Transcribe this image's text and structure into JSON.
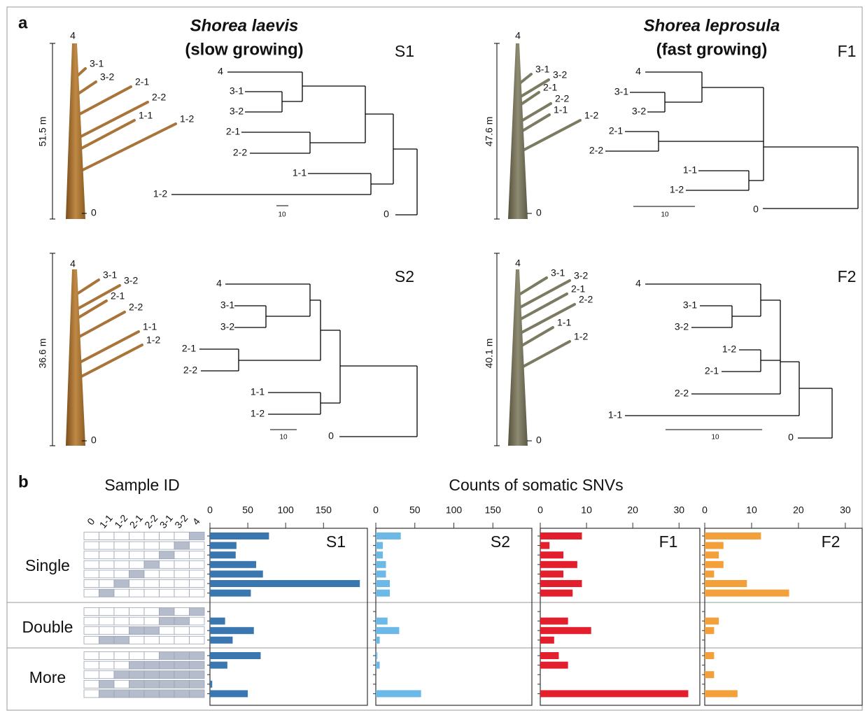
{
  "panel_a": {
    "label": "a",
    "species": [
      {
        "name": "Shorea laevis",
        "growth": "(slow growing)"
      },
      {
        "name": "Shorea leprosula",
        "growth": "(fast growing)"
      }
    ],
    "trees": [
      {
        "id": "S1",
        "height": "51.5 m",
        "tree_labels": [
          "4",
          "3-1",
          "3-2",
          "2-1",
          "2-2",
          "1-1",
          "1-2",
          "0"
        ],
        "dendrogram_labels": [
          "4",
          "3-1",
          "3-2",
          "2-1",
          "2-2",
          "1-1",
          "1-2",
          "0"
        ],
        "scale_label": "10"
      },
      {
        "id": "S2",
        "height": "36.6 m",
        "tree_labels": [
          "4",
          "3-1",
          "3-2",
          "2-1",
          "2-2",
          "1-1",
          "1-2",
          "0"
        ],
        "dendrogram_labels": [
          "4",
          "3-1",
          "3-2",
          "2-1",
          "2-2",
          "1-1",
          "1-2",
          "0"
        ],
        "scale_label": "10"
      },
      {
        "id": "F1",
        "height": "47.6 m",
        "tree_labels": [
          "4",
          "3-1",
          "3-2",
          "2-1",
          "2-2",
          "1-1",
          "1-2",
          "0"
        ],
        "dendrogram_labels": [
          "4",
          "3-1",
          "3-2",
          "2-1",
          "2-2",
          "1-1",
          "1-2",
          "0"
        ],
        "scale_label": "10"
      },
      {
        "id": "F2",
        "height": "40.1 m",
        "tree_labels": [
          "4",
          "3-1",
          "3-2",
          "2-1",
          "2-2",
          "1-1",
          "1-2",
          "0"
        ],
        "dendrogram_labels": [
          "4",
          "3-1",
          "3-2",
          "1-2",
          "2-1",
          "2-2",
          "1-1",
          "0"
        ],
        "scale_label": "10"
      }
    ]
  },
  "panel_b": {
    "label": "b",
    "sample_header": "Sample ID",
    "counts_header": "Counts of somatic SNVs",
    "samples": [
      "0",
      "1-1",
      "1-2",
      "2-1",
      "2-2",
      "3-1",
      "3-2",
      "4"
    ],
    "groups": [
      {
        "name": "Single",
        "matrix": [
          [
            0,
            0,
            0,
            0,
            0,
            0,
            0,
            1
          ],
          [
            0,
            0,
            0,
            0,
            0,
            0,
            1,
            0
          ],
          [
            0,
            0,
            0,
            0,
            0,
            1,
            0,
            0
          ],
          [
            0,
            0,
            0,
            0,
            1,
            0,
            0,
            0
          ],
          [
            0,
            0,
            0,
            1,
            0,
            0,
            0,
            0
          ],
          [
            0,
            0,
            1,
            0,
            0,
            0,
            0,
            0
          ],
          [
            0,
            1,
            0,
            0,
            0,
            0,
            0,
            0
          ]
        ]
      },
      {
        "name": "Double",
        "matrix": [
          [
            0,
            0,
            0,
            0,
            0,
            1,
            0,
            1
          ],
          [
            0,
            0,
            0,
            0,
            0,
            1,
            1,
            0
          ],
          [
            0,
            0,
            0,
            1,
            1,
            0,
            0,
            0
          ],
          [
            0,
            1,
            1,
            0,
            0,
            0,
            0,
            0
          ]
        ]
      },
      {
        "name": "More",
        "matrix": [
          [
            0,
            0,
            0,
            0,
            0,
            1,
            1,
            1
          ],
          [
            0,
            0,
            0,
            1,
            1,
            1,
            1,
            1
          ],
          [
            0,
            0,
            1,
            1,
            1,
            1,
            1,
            1
          ],
          [
            0,
            1,
            0,
            1,
            1,
            1,
            1,
            1
          ],
          [
            0,
            1,
            1,
            1,
            1,
            1,
            1,
            1
          ]
        ]
      }
    ]
  },
  "chart_data": [
    {
      "type": "bar",
      "orientation": "horizontal",
      "title": "S1",
      "color": "#3a77b0",
      "values": [
        78,
        35,
        34,
        61,
        70,
        198,
        54,
        0,
        20,
        58,
        30,
        67,
        23,
        0,
        3,
        50
      ],
      "xlim": [
        0,
        208
      ],
      "xticks": [
        0,
        50,
        100,
        150
      ]
    },
    {
      "type": "bar",
      "orientation": "horizontal",
      "title": "S2",
      "color": "#6cb9e8",
      "values": [
        32,
        9,
        9,
        13,
        13,
        18,
        18,
        0,
        15,
        30,
        5,
        2,
        5,
        0,
        0,
        58
      ],
      "xlim": [
        0,
        200
      ],
      "xticks": [
        0,
        50,
        100,
        150
      ]
    },
    {
      "type": "bar",
      "orientation": "horizontal",
      "title": "F1",
      "color": "#e31e2d",
      "values": [
        9,
        2,
        5,
        8,
        5,
        9,
        7,
        0,
        6,
        11,
        3,
        4,
        6,
        0,
        0,
        32
      ],
      "xlim": [
        0,
        34.5
      ],
      "xticks": [
        0,
        10,
        20,
        30
      ]
    },
    {
      "type": "bar",
      "orientation": "horizontal",
      "title": "F2",
      "color": "#f4a03a",
      "values": [
        12,
        4,
        3,
        4,
        2,
        9,
        18,
        0,
        3,
        2,
        0,
        2,
        0,
        2,
        0,
        7
      ],
      "xlim": [
        0,
        33.6
      ],
      "xticks": [
        0,
        10,
        20,
        30
      ]
    }
  ]
}
